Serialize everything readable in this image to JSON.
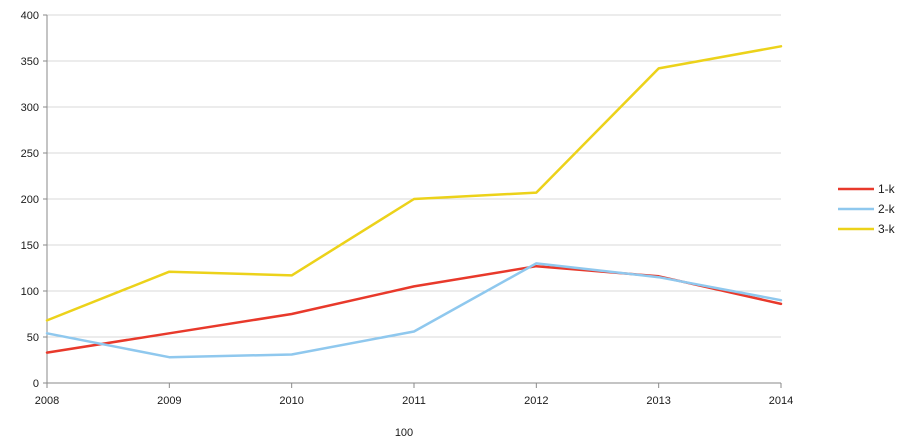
{
  "chart_data": {
    "type": "line",
    "x": [
      "2008",
      "2009",
      "2010",
      "2011",
      "2012",
      "2013",
      "2014"
    ],
    "series": [
      {
        "name": "1-k",
        "color": "#e8392b",
        "values": [
          33,
          54,
          75,
          105,
          127,
          116,
          86
        ]
      },
      {
        "name": "2-k",
        "color": "#8fc8ee",
        "values": [
          54,
          28,
          31,
          56,
          130,
          115,
          90
        ]
      },
      {
        "name": "3-k",
        "color": "#ecd21a",
        "values": [
          68,
          121,
          117,
          200,
          207,
          342,
          366
        ]
      }
    ],
    "y_ticks": [
      "0",
      "50",
      "100",
      "150",
      "200",
      "250",
      "300",
      "350",
      "400"
    ],
    "ylim": [
      0,
      400
    ],
    "xlabel": "100",
    "ylabel": "",
    "title": "",
    "grid": true,
    "legend_position": "right"
  }
}
